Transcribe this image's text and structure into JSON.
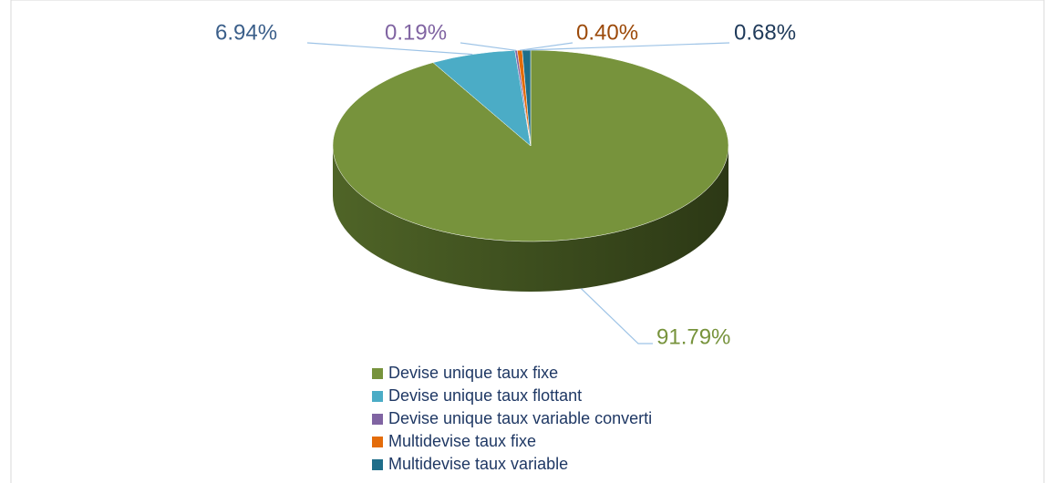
{
  "chart_data": {
    "type": "pie3d",
    "categories": [
      "Devise unique taux fixe",
      "Devise unique taux flottant",
      "Devise unique taux variable converti",
      "Multidevise taux fixe",
      "Multidevise taux variable"
    ],
    "values": [
      91.79,
      6.94,
      0.19,
      0.4,
      0.68
    ],
    "value_labels": [
      "91.79%",
      "6.94%",
      "0.19%",
      "0.40%",
      "0.68%"
    ],
    "colors": [
      "#77933c",
      "#4bacc6",
      "#8064a2",
      "#e46c0a",
      "#1f6e8a"
    ],
    "label_colors": [
      "#77933c",
      "#3b5f8a",
      "#8064a2",
      "#9c4a0a",
      "#1f3a5a"
    ],
    "legend": "bottom"
  }
}
